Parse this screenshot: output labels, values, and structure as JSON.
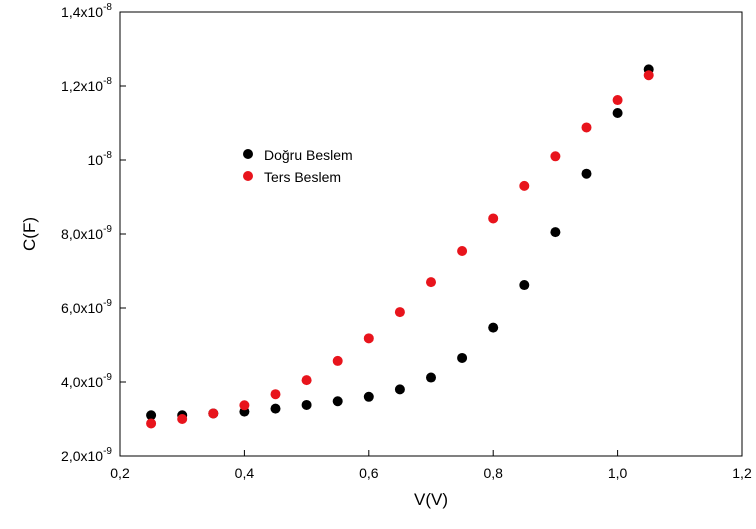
{
  "chart_data": {
    "type": "scatter",
    "xlabel": "V(V)",
    "ylabel": "C(F)",
    "xlim": [
      0.2,
      1.2
    ],
    "ylim": [
      2e-09,
      1.4e-08
    ],
    "x_ticks": [
      {
        "value": 0.2,
        "label": "0,2"
      },
      {
        "value": 0.4,
        "label": "0,4"
      },
      {
        "value": 0.6,
        "label": "0,6"
      },
      {
        "value": 0.8,
        "label": "0,8"
      },
      {
        "value": 1.0,
        "label": "1,0"
      },
      {
        "value": 1.2,
        "label": "1,2"
      }
    ],
    "y_ticks": [
      {
        "value": 2e-09,
        "mantissa": "2,0x10",
        "exp": "-9"
      },
      {
        "value": 4e-09,
        "mantissa": "4,0x10",
        "exp": "-9"
      },
      {
        "value": 6e-09,
        "mantissa": "6,0x10",
        "exp": "-9"
      },
      {
        "value": 8e-09,
        "mantissa": "8,0x10",
        "exp": "-9"
      },
      {
        "value": 1e-08,
        "mantissa": "10",
        "exp": "-8"
      },
      {
        "value": 1.2e-08,
        "mantissa": "1,2x10",
        "exp": "-8"
      },
      {
        "value": 1.4e-08,
        "mantissa": "1,4x10",
        "exp": "-8"
      }
    ],
    "legend_position": "upper-left",
    "grid": false,
    "series": [
      {
        "name": "Doğru Beslem",
        "color": "#000000",
        "x": [
          0.25,
          0.3,
          0.35,
          0.4,
          0.45,
          0.5,
          0.55,
          0.6,
          0.65,
          0.7,
          0.75,
          0.8,
          0.85,
          0.9,
          0.95,
          1.0,
          1.05
        ],
        "y": [
          3.1e-09,
          3.1e-09,
          3.15e-09,
          3.2e-09,
          3.28e-09,
          3.38e-09,
          3.48e-09,
          3.6e-09,
          3.8e-09,
          4.12e-09,
          4.65e-09,
          5.47e-09,
          6.62e-09,
          8.05e-09,
          9.63e-09,
          1.127e-08,
          1.245e-08
        ]
      },
      {
        "name": "Ters Beslem",
        "color": "#e8141c",
        "x": [
          0.25,
          0.3,
          0.35,
          0.4,
          0.45,
          0.5,
          0.55,
          0.6,
          0.65,
          0.7,
          0.75,
          0.8,
          0.85,
          0.9,
          0.95,
          1.0,
          1.05
        ],
        "y": [
          2.88e-09,
          3e-09,
          3.15e-09,
          3.37e-09,
          3.67e-09,
          4.05e-09,
          4.57e-09,
          5.18e-09,
          5.89e-09,
          6.7e-09,
          7.54e-09,
          8.42e-09,
          9.3e-09,
          1.01e-08,
          1.088e-08,
          1.162e-08,
          1.229e-08
        ]
      }
    ]
  }
}
